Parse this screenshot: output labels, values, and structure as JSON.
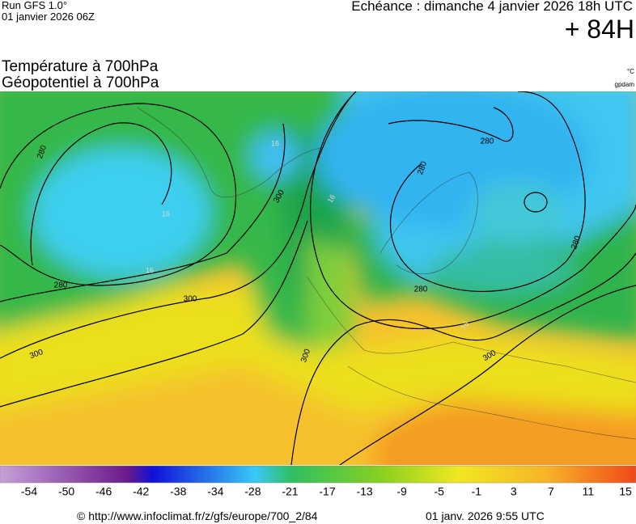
{
  "header": {
    "run": "Run GFS 1.0°",
    "run_date": "01 janvier 2026 06Z",
    "forecast_time": "Echéance : dimanche 4 janvier 2026 18h UTC",
    "lead": "+ 84H",
    "title_line1": "Température à 700hPa",
    "title_line2": "Géopotentiel à 700hPa",
    "unit_temp": "°C",
    "unit_geo": "gpdam"
  },
  "map": {
    "contour_labels": [
      "280",
      "280",
      "300",
      "300",
      "300",
      "300",
      "280",
      "280",
      "280",
      "280",
      "300",
      "16",
      "16",
      "16",
      "16",
      "16"
    ]
  },
  "colorbar": {
    "labels": [
      -54,
      -50,
      -46,
      -42,
      -38,
      -34,
      -28,
      -21,
      -17,
      -13,
      -9,
      -5,
      -1,
      3,
      7,
      11,
      15
    ]
  },
  "footer": {
    "source": "© http://www.infoclimat.fr/z/gfs/europe/700_2/84",
    "generated": "01 janv. 2026  9:55 UTC"
  }
}
